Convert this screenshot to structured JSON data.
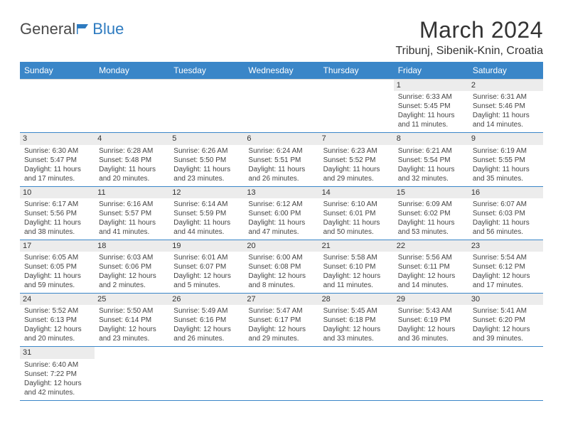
{
  "logo": {
    "text1": "General",
    "text2": "Blue"
  },
  "header": {
    "month": "March 2024",
    "location": "Tribunj, Sibenik-Knin, Croatia"
  },
  "columns": [
    "Sunday",
    "Monday",
    "Tuesday",
    "Wednesday",
    "Thursday",
    "Friday",
    "Saturday"
  ],
  "colors": {
    "header_bg": "#3a86c8",
    "header_text": "#ffffff",
    "daynum_bg": "#ececec",
    "row_bottom_border": "#3a86c8",
    "row_top_border": "#d6d6d6"
  },
  "weeks": [
    [
      null,
      null,
      null,
      null,
      null,
      {
        "n": "1",
        "sr": "Sunrise: 6:33 AM",
        "ss": "Sunset: 5:45 PM",
        "d1": "Daylight: 11 hours",
        "d2": "and 11 minutes."
      },
      {
        "n": "2",
        "sr": "Sunrise: 6:31 AM",
        "ss": "Sunset: 5:46 PM",
        "d1": "Daylight: 11 hours",
        "d2": "and 14 minutes."
      }
    ],
    [
      {
        "n": "3",
        "sr": "Sunrise: 6:30 AM",
        "ss": "Sunset: 5:47 PM",
        "d1": "Daylight: 11 hours",
        "d2": "and 17 minutes."
      },
      {
        "n": "4",
        "sr": "Sunrise: 6:28 AM",
        "ss": "Sunset: 5:48 PM",
        "d1": "Daylight: 11 hours",
        "d2": "and 20 minutes."
      },
      {
        "n": "5",
        "sr": "Sunrise: 6:26 AM",
        "ss": "Sunset: 5:50 PM",
        "d1": "Daylight: 11 hours",
        "d2": "and 23 minutes."
      },
      {
        "n": "6",
        "sr": "Sunrise: 6:24 AM",
        "ss": "Sunset: 5:51 PM",
        "d1": "Daylight: 11 hours",
        "d2": "and 26 minutes."
      },
      {
        "n": "7",
        "sr": "Sunrise: 6:23 AM",
        "ss": "Sunset: 5:52 PM",
        "d1": "Daylight: 11 hours",
        "d2": "and 29 minutes."
      },
      {
        "n": "8",
        "sr": "Sunrise: 6:21 AM",
        "ss": "Sunset: 5:54 PM",
        "d1": "Daylight: 11 hours",
        "d2": "and 32 minutes."
      },
      {
        "n": "9",
        "sr": "Sunrise: 6:19 AM",
        "ss": "Sunset: 5:55 PM",
        "d1": "Daylight: 11 hours",
        "d2": "and 35 minutes."
      }
    ],
    [
      {
        "n": "10",
        "sr": "Sunrise: 6:17 AM",
        "ss": "Sunset: 5:56 PM",
        "d1": "Daylight: 11 hours",
        "d2": "and 38 minutes."
      },
      {
        "n": "11",
        "sr": "Sunrise: 6:16 AM",
        "ss": "Sunset: 5:57 PM",
        "d1": "Daylight: 11 hours",
        "d2": "and 41 minutes."
      },
      {
        "n": "12",
        "sr": "Sunrise: 6:14 AM",
        "ss": "Sunset: 5:59 PM",
        "d1": "Daylight: 11 hours",
        "d2": "and 44 minutes."
      },
      {
        "n": "13",
        "sr": "Sunrise: 6:12 AM",
        "ss": "Sunset: 6:00 PM",
        "d1": "Daylight: 11 hours",
        "d2": "and 47 minutes."
      },
      {
        "n": "14",
        "sr": "Sunrise: 6:10 AM",
        "ss": "Sunset: 6:01 PM",
        "d1": "Daylight: 11 hours",
        "d2": "and 50 minutes."
      },
      {
        "n": "15",
        "sr": "Sunrise: 6:09 AM",
        "ss": "Sunset: 6:02 PM",
        "d1": "Daylight: 11 hours",
        "d2": "and 53 minutes."
      },
      {
        "n": "16",
        "sr": "Sunrise: 6:07 AM",
        "ss": "Sunset: 6:03 PM",
        "d1": "Daylight: 11 hours",
        "d2": "and 56 minutes."
      }
    ],
    [
      {
        "n": "17",
        "sr": "Sunrise: 6:05 AM",
        "ss": "Sunset: 6:05 PM",
        "d1": "Daylight: 11 hours",
        "d2": "and 59 minutes."
      },
      {
        "n": "18",
        "sr": "Sunrise: 6:03 AM",
        "ss": "Sunset: 6:06 PM",
        "d1": "Daylight: 12 hours",
        "d2": "and 2 minutes."
      },
      {
        "n": "19",
        "sr": "Sunrise: 6:01 AM",
        "ss": "Sunset: 6:07 PM",
        "d1": "Daylight: 12 hours",
        "d2": "and 5 minutes."
      },
      {
        "n": "20",
        "sr": "Sunrise: 6:00 AM",
        "ss": "Sunset: 6:08 PM",
        "d1": "Daylight: 12 hours",
        "d2": "and 8 minutes."
      },
      {
        "n": "21",
        "sr": "Sunrise: 5:58 AM",
        "ss": "Sunset: 6:10 PM",
        "d1": "Daylight: 12 hours",
        "d2": "and 11 minutes."
      },
      {
        "n": "22",
        "sr": "Sunrise: 5:56 AM",
        "ss": "Sunset: 6:11 PM",
        "d1": "Daylight: 12 hours",
        "d2": "and 14 minutes."
      },
      {
        "n": "23",
        "sr": "Sunrise: 5:54 AM",
        "ss": "Sunset: 6:12 PM",
        "d1": "Daylight: 12 hours",
        "d2": "and 17 minutes."
      }
    ],
    [
      {
        "n": "24",
        "sr": "Sunrise: 5:52 AM",
        "ss": "Sunset: 6:13 PM",
        "d1": "Daylight: 12 hours",
        "d2": "and 20 minutes."
      },
      {
        "n": "25",
        "sr": "Sunrise: 5:50 AM",
        "ss": "Sunset: 6:14 PM",
        "d1": "Daylight: 12 hours",
        "d2": "and 23 minutes."
      },
      {
        "n": "26",
        "sr": "Sunrise: 5:49 AM",
        "ss": "Sunset: 6:16 PM",
        "d1": "Daylight: 12 hours",
        "d2": "and 26 minutes."
      },
      {
        "n": "27",
        "sr": "Sunrise: 5:47 AM",
        "ss": "Sunset: 6:17 PM",
        "d1": "Daylight: 12 hours",
        "d2": "and 29 minutes."
      },
      {
        "n": "28",
        "sr": "Sunrise: 5:45 AM",
        "ss": "Sunset: 6:18 PM",
        "d1": "Daylight: 12 hours",
        "d2": "and 33 minutes."
      },
      {
        "n": "29",
        "sr": "Sunrise: 5:43 AM",
        "ss": "Sunset: 6:19 PM",
        "d1": "Daylight: 12 hours",
        "d2": "and 36 minutes."
      },
      {
        "n": "30",
        "sr": "Sunrise: 5:41 AM",
        "ss": "Sunset: 6:20 PM",
        "d1": "Daylight: 12 hours",
        "d2": "and 39 minutes."
      }
    ],
    [
      {
        "n": "31",
        "sr": "Sunrise: 6:40 AM",
        "ss": "Sunset: 7:22 PM",
        "d1": "Daylight: 12 hours",
        "d2": "and 42 minutes."
      },
      null,
      null,
      null,
      null,
      null,
      null
    ]
  ]
}
